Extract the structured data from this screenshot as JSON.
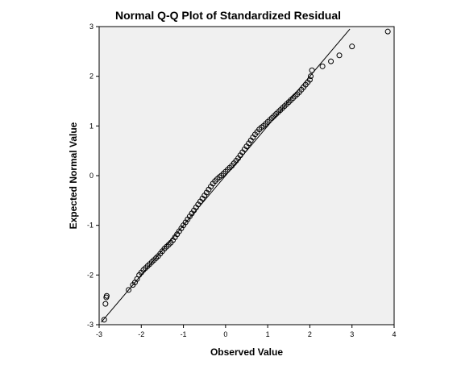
{
  "chart_data": {
    "type": "scatter",
    "title": "Normal Q-Q Plot of Standardized Residual",
    "xlabel": "Observed Value",
    "ylabel": "Expected Normal Value",
    "xlim": [
      -3,
      4
    ],
    "ylim": [
      -3,
      3
    ],
    "xticks": [
      "-3",
      "-2",
      "-1",
      "0",
      "1",
      "2",
      "3",
      "4"
    ],
    "yticks": [
      "-3",
      "-2",
      "-1",
      "0",
      "1",
      "2",
      "3"
    ],
    "reference_line": {
      "from": [
        -2.95,
        -2.95
      ],
      "to": [
        2.95,
        2.95
      ]
    },
    "points_x": [
      -2.88,
      -2.85,
      -2.83,
      -2.82,
      -2.3,
      -2.2,
      -2.15,
      -2.1,
      -2.05,
      -2.0,
      -1.95,
      -1.9,
      -1.85,
      -1.8,
      -1.75,
      -1.7,
      -1.65,
      -1.6,
      -1.55,
      -1.5,
      -1.45,
      -1.4,
      -1.35,
      -1.3,
      -1.25,
      -1.2,
      -1.15,
      -1.1,
      -1.05,
      -1.0,
      -0.95,
      -0.9,
      -0.85,
      -0.8,
      -0.75,
      -0.7,
      -0.65,
      -0.6,
      -0.55,
      -0.5,
      -0.45,
      -0.4,
      -0.35,
      -0.3,
      -0.25,
      -0.2,
      -0.15,
      -0.1,
      -0.05,
      0.0,
      0.05,
      0.1,
      0.15,
      0.2,
      0.25,
      0.3,
      0.35,
      0.4,
      0.45,
      0.5,
      0.55,
      0.6,
      0.65,
      0.7,
      0.75,
      0.8,
      0.85,
      0.9,
      0.95,
      1.0,
      1.05,
      1.1,
      1.15,
      1.2,
      1.25,
      1.3,
      1.35,
      1.4,
      1.45,
      1.5,
      1.55,
      1.6,
      1.65,
      1.7,
      1.75,
      1.8,
      1.85,
      1.9,
      1.95,
      2.0,
      2.02,
      2.05,
      2.3,
      2.5,
      2.7,
      3.0,
      3.85
    ],
    "points_y": [
      -2.9,
      -2.58,
      -2.45,
      -2.42,
      -2.3,
      -2.2,
      -2.15,
      -2.08,
      -2.0,
      -1.95,
      -1.9,
      -1.86,
      -1.82,
      -1.78,
      -1.74,
      -1.7,
      -1.66,
      -1.62,
      -1.57,
      -1.52,
      -1.47,
      -1.43,
      -1.39,
      -1.35,
      -1.3,
      -1.24,
      -1.18,
      -1.12,
      -1.06,
      -1.0,
      -0.94,
      -0.88,
      -0.82,
      -0.76,
      -0.7,
      -0.64,
      -0.58,
      -0.52,
      -0.46,
      -0.4,
      -0.34,
      -0.28,
      -0.22,
      -0.16,
      -0.11,
      -0.07,
      -0.03,
      0.0,
      0.04,
      0.08,
      0.12,
      0.16,
      0.2,
      0.25,
      0.3,
      0.35,
      0.41,
      0.47,
      0.53,
      0.59,
      0.65,
      0.71,
      0.77,
      0.83,
      0.88,
      0.93,
      0.97,
      1.0,
      1.04,
      1.08,
      1.12,
      1.16,
      1.2,
      1.24,
      1.28,
      1.32,
      1.36,
      1.4,
      1.44,
      1.48,
      1.52,
      1.56,
      1.6,
      1.64,
      1.68,
      1.73,
      1.78,
      1.83,
      1.88,
      1.93,
      2.0,
      2.12,
      2.2,
      2.3,
      2.42,
      2.6,
      2.9
    ]
  }
}
